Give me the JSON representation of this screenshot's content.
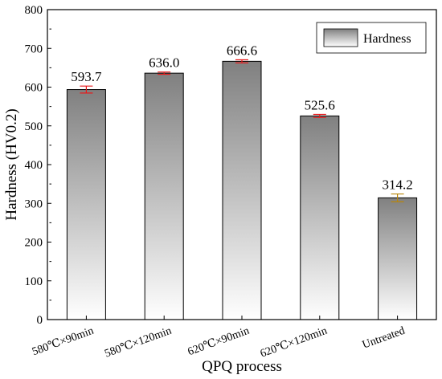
{
  "chart_data": {
    "type": "bar",
    "title": "",
    "xlabel": "QPQ process",
    "ylabel": "Hardness (HV0.2)",
    "categories": [
      "580℃×90min",
      "580℃×120min",
      "620℃×90min",
      "620℃×120min",
      "Untreated"
    ],
    "series": [
      {
        "name": "Hardness",
        "values": [
          593.7,
          636.0,
          666.6,
          525.6,
          314.2
        ],
        "errors": [
          9,
          3,
          4,
          4,
          10
        ],
        "data_labels": [
          "593.7",
          "636.0",
          "666.6",
          "525.6",
          "314.2"
        ]
      }
    ],
    "ylim": [
      0,
      800
    ],
    "yticks": [
      0,
      100,
      200,
      300,
      400,
      500,
      600,
      700,
      800
    ],
    "grid": false,
    "legend": "top-right",
    "colors": {
      "bar_top": "#808080",
      "bar_bottom": "#ffffff",
      "error_bar": "#e8191a",
      "error_bar_untreated": "#b8860b"
    }
  }
}
